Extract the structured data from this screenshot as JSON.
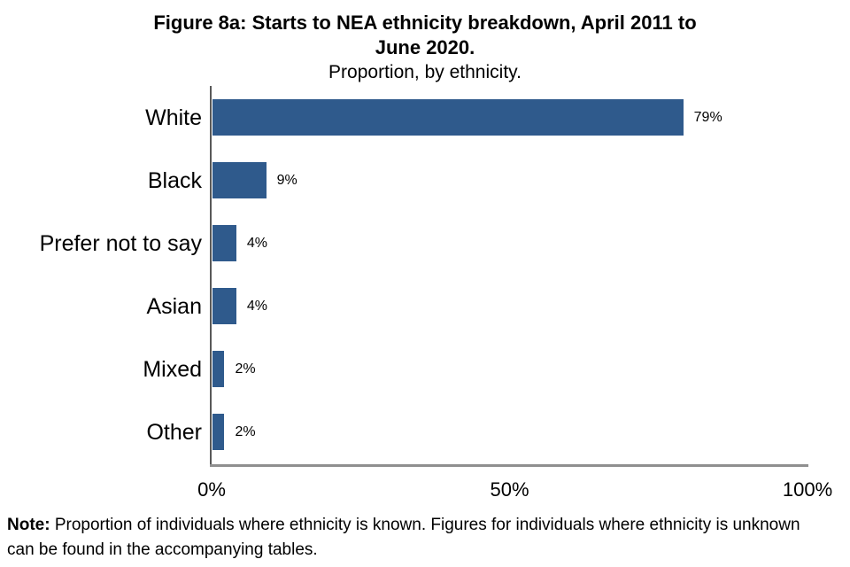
{
  "title": {
    "line1": "Figure 8a: Starts to NEA ethnicity breakdown, April 2011 to",
    "line2": "June 2020.",
    "subtitle": "Proportion, by ethnicity."
  },
  "chart_data": {
    "type": "bar",
    "orientation": "horizontal",
    "title": "Figure 8a: Starts to NEA ethnicity breakdown, April 2011 to June 2020.",
    "subtitle": "Proportion, by ethnicity.",
    "categories": [
      "White",
      "Black",
      "Prefer not to say",
      "Asian",
      "Mixed",
      "Other"
    ],
    "values": [
      79,
      9,
      4,
      4,
      2,
      2
    ],
    "data_labels": [
      "79%",
      "9%",
      "4%",
      "4%",
      "2%",
      "2%"
    ],
    "xlabel": "",
    "ylabel": "",
    "xlim": [
      0,
      100
    ],
    "x_tick_values": [
      0,
      50,
      100
    ],
    "x_tick_labels": [
      "0%",
      "50%",
      "100%"
    ],
    "grid": false,
    "legend": false,
    "bar_color": "#2F5A8C",
    "y_axis_line_color": "#595959",
    "x_axis_line_color": "#8F8F8F"
  },
  "note": {
    "bold": "Note:",
    "line1": " Proportion of individuals where ethnicity is known. Figures for individuals where ethnicity is unknown",
    "line2": "can be found in the accompanying tables."
  }
}
